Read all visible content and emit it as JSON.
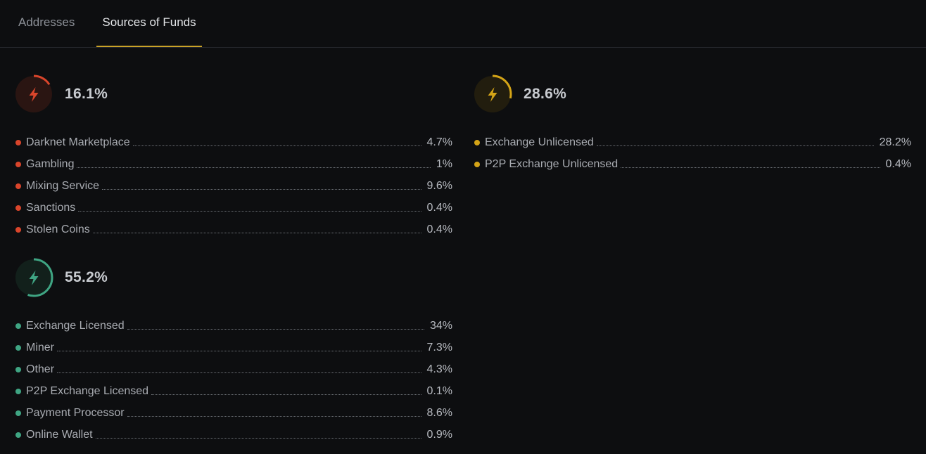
{
  "tabs": [
    {
      "label": "Addresses",
      "active": false
    },
    {
      "label": "Sources of Funds",
      "active": true
    }
  ],
  "colors": {
    "accent_tab": "#c9a227",
    "red": "#d9452b",
    "yellow": "#d4a417",
    "green": "#3fa583"
  },
  "groups": {
    "red": {
      "percent_label": "16.1%",
      "percent_value": 16.1,
      "icon": "lightning-icon",
      "items": [
        {
          "label": "Darknet Marketplace",
          "value": "4.7%"
        },
        {
          "label": "Gambling",
          "value": "1%"
        },
        {
          "label": "Mixing Service",
          "value": "9.6%"
        },
        {
          "label": "Sanctions",
          "value": "0.4%"
        },
        {
          "label": "Stolen Coins",
          "value": "0.4%"
        }
      ]
    },
    "yellow": {
      "percent_label": "28.6%",
      "percent_value": 28.6,
      "icon": "lightning-icon",
      "items": [
        {
          "label": "Exchange Unlicensed",
          "value": "28.2%"
        },
        {
          "label": "P2P Exchange Unlicensed",
          "value": "0.4%"
        }
      ]
    },
    "green": {
      "percent_label": "55.2%",
      "percent_value": 55.2,
      "icon": "lightning-icon",
      "items": [
        {
          "label": "Exchange Licensed",
          "value": "34%"
        },
        {
          "label": "Miner",
          "value": "7.3%"
        },
        {
          "label": "Other",
          "value": "4.3%"
        },
        {
          "label": "P2P Exchange Licensed",
          "value": "0.1%"
        },
        {
          "label": "Payment Processor",
          "value": "8.6%"
        },
        {
          "label": "Online Wallet",
          "value": "0.9%"
        }
      ]
    }
  }
}
